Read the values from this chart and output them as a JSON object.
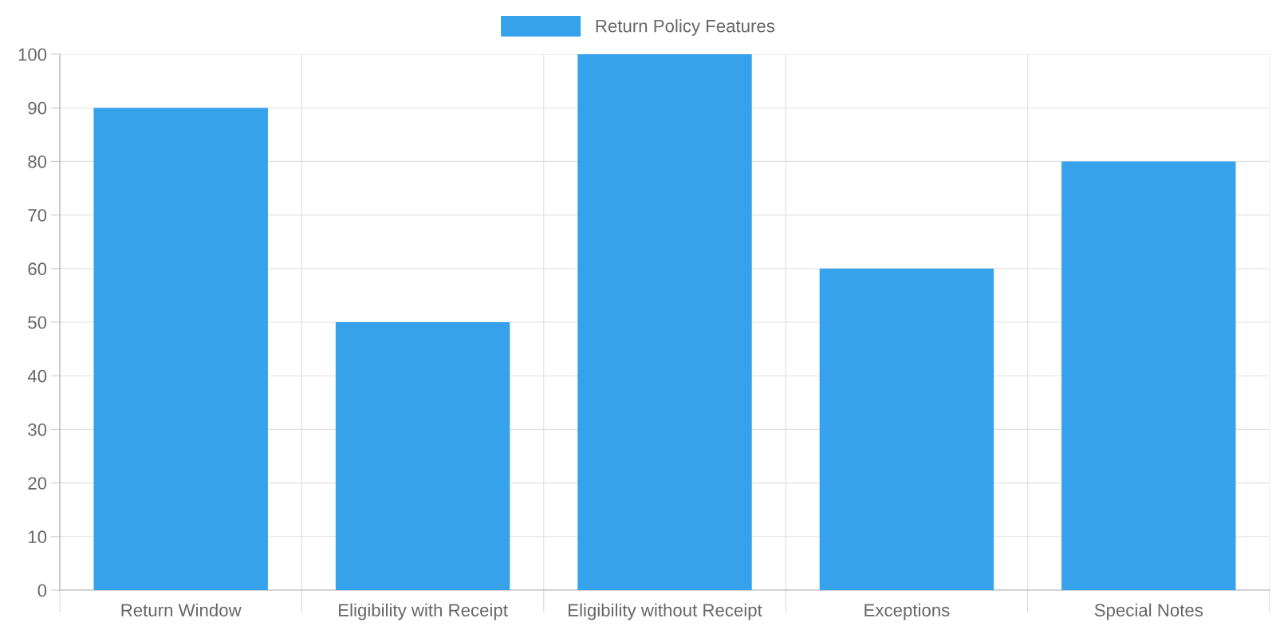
{
  "chart_data": {
    "type": "bar",
    "categories": [
      "Return Window",
      "Eligibility with Receipt",
      "Eligibility without Receipt",
      "Exceptions",
      "Special Notes"
    ],
    "series": [
      {
        "name": "Return Policy Features",
        "color": "#36a2eb",
        "values": [
          90,
          50,
          100,
          60,
          80
        ]
      }
    ],
    "ylim": [
      0,
      100
    ],
    "yticks": [
      0,
      10,
      20,
      30,
      40,
      50,
      60,
      70,
      80,
      90,
      100
    ],
    "grid": true,
    "legend": "top"
  }
}
